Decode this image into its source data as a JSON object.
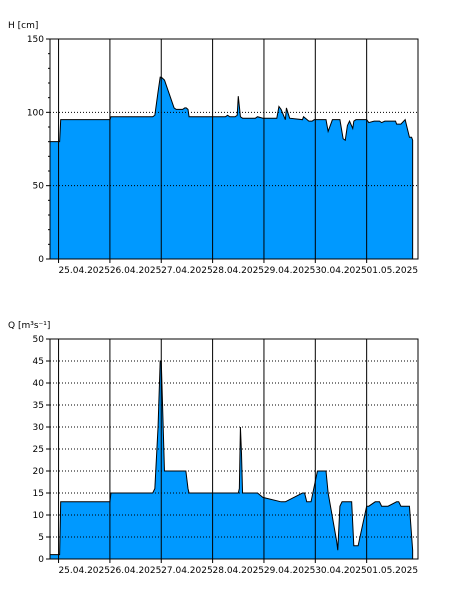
{
  "colors": {
    "fill": "#0099ff",
    "stroke": "#000000",
    "grid": "#000000",
    "background": "#ffffff"
  },
  "chart_data": [
    {
      "type": "area",
      "ylabel": "H [cm]",
      "ylim": [
        0,
        150
      ],
      "yticks": [
        0,
        50,
        100,
        150
      ],
      "grid": "dotted horizontal at 50 and 100, solid vertical at each day",
      "xlim": [
        "2025-04-24T20:00",
        "2025-05-02T00:00"
      ],
      "xticks": [
        "25.04.2025",
        "26.04.2025",
        "27.04.2025",
        "28.04.2025",
        "29.04.2025",
        "30.04.2025",
        "01.05.2025"
      ],
      "x": [
        "2025-04-24T20:00",
        "2025-04-24T23:00",
        "2025-04-25T00:30",
        "2025-04-25T01:00",
        "2025-04-26T00:00",
        "2025-04-26T00:30",
        "2025-04-26T05:00",
        "2025-04-26T20:00",
        "2025-04-26T21:00",
        "2025-04-26T22:30",
        "2025-04-26T23:30",
        "2025-04-27T00:00",
        "2025-04-27T01:30",
        "2025-04-27T06:00",
        "2025-04-27T07:00",
        "2025-04-27T08:00",
        "2025-04-27T10:00",
        "2025-04-27T11:00",
        "2025-04-27T11:40",
        "2025-04-27T12:30",
        "2025-04-27T13:00",
        "2025-04-28T06:00",
        "2025-04-28T07:00",
        "2025-04-28T08:00",
        "2025-04-28T10:30",
        "2025-04-28T11:30",
        "2025-04-28T12:00",
        "2025-04-28T13:00",
        "2025-04-28T14:00",
        "2025-04-28T20:00",
        "2025-04-28T21:00",
        "2025-04-28T23:30",
        "2025-04-29T06:00",
        "2025-04-29T07:00",
        "2025-04-29T08:00",
        "2025-04-29T10:00",
        "2025-04-29T10:30",
        "2025-04-29T12:00",
        "2025-04-29T18:00",
        "2025-04-29T18:30",
        "2025-04-29T21:00",
        "2025-04-29T22:30",
        "2025-04-29T23:30",
        "2025-04-30T00:30",
        "2025-04-30T05:00",
        "2025-04-30T06:00",
        "2025-04-30T08:00",
        "2025-04-30T10:30",
        "2025-04-30T11:30",
        "2025-04-30T13:00",
        "2025-04-30T14:00",
        "2025-04-30T15:00",
        "2025-04-30T16:00",
        "2025-04-30T17:30",
        "2025-04-30T18:00",
        "2025-04-30T19:00",
        "2025-05-01T00:00",
        "2025-05-01T01:00",
        "2025-05-01T03:30",
        "2025-05-01T04:30",
        "2025-05-01T06:00",
        "2025-05-01T07:00",
        "2025-05-01T08:30",
        "2025-05-01T09:00",
        "2025-05-01T10:00",
        "2025-05-01T13:30",
        "2025-05-01T14:00",
        "2025-05-01T16:00",
        "2025-05-01T18:00",
        "2025-05-01T20:00",
        "2025-05-01T21:00",
        "2025-05-01T21:30"
      ],
      "y": [
        80,
        80,
        80,
        95,
        95,
        97,
        97,
        97,
        98,
        114,
        124,
        124,
        122,
        103,
        102,
        102,
        102,
        103,
        103,
        102,
        97,
        97,
        98,
        97,
        97,
        98,
        111,
        97,
        96,
        96,
        97,
        96,
        96,
        104,
        102,
        95,
        103,
        96,
        95,
        97,
        94,
        94,
        95,
        95,
        95,
        87,
        95,
        95,
        95,
        82,
        81,
        91,
        94,
        89,
        94,
        95,
        95,
        93,
        94,
        94,
        94,
        93,
        94,
        94,
        94,
        94,
        92,
        92,
        95,
        83,
        83,
        81
      ]
    },
    {
      "type": "area",
      "ylabel": "Q [m³s⁻¹]",
      "ylim": [
        0,
        50
      ],
      "yticks": [
        0,
        5,
        10,
        15,
        20,
        25,
        30,
        35,
        40,
        45,
        50
      ],
      "grid": "dotted horizontal at each 5, solid vertical at each day",
      "xlim": [
        "2025-04-24T20:00",
        "2025-05-02T00:00"
      ],
      "xticks": [
        "25.04.2025",
        "26.04.2025",
        "27.04.2025",
        "28.04.2025",
        "29.04.2025",
        "30.04.2025",
        "01.05.2025"
      ],
      "x": [
        "2025-04-24T20:00",
        "2025-04-25T00:00",
        "2025-04-25T00:30",
        "2025-04-25T01:00",
        "2025-04-26T00:00",
        "2025-04-26T00:30",
        "2025-04-26T05:00",
        "2025-04-26T20:00",
        "2025-04-26T21:00",
        "2025-04-26T22:30",
        "2025-04-26T23:30",
        "2025-04-27T00:00",
        "2025-04-27T01:30",
        "2025-04-27T08:00",
        "2025-04-27T08:30",
        "2025-04-27T10:00",
        "2025-04-27T11:30",
        "2025-04-27T12:00",
        "2025-04-27T12:30",
        "2025-04-27T13:00",
        "2025-04-27T13:30",
        "2025-04-28T06:00",
        "2025-04-28T07:00",
        "2025-04-28T12:00",
        "2025-04-28T12:30",
        "2025-04-28T13:00",
        "2025-04-28T13:30",
        "2025-04-28T14:00",
        "2025-04-28T20:00",
        "2025-04-28T21:00",
        "2025-04-28T23:30",
        "2025-04-29T08:00",
        "2025-04-29T10:00",
        "2025-04-29T18:00",
        "2025-04-29T19:00",
        "2025-04-29T20:00",
        "2025-04-29T21:00",
        "2025-04-29T21:30",
        "2025-04-29T22:00",
        "2025-04-30T01:00",
        "2025-04-30T05:00",
        "2025-04-30T06:00",
        "2025-04-30T10:00",
        "2025-04-30T10:30",
        "2025-04-30T11:30",
        "2025-04-30T12:30",
        "2025-04-30T13:00",
        "2025-04-30T14:00",
        "2025-04-30T14:30",
        "2025-04-30T15:30",
        "2025-04-30T17:00",
        "2025-04-30T18:00",
        "2025-04-30T20:00",
        "2025-05-01T00:00",
        "2025-05-01T01:00",
        "2025-05-01T04:00",
        "2025-05-01T06:00",
        "2025-05-01T07:00",
        "2025-05-01T09:00",
        "2025-05-01T10:00",
        "2025-05-01T14:00",
        "2025-05-01T15:00",
        "2025-05-01T16:00",
        "2025-05-01T17:00",
        "2025-05-01T20:00",
        "2025-05-01T21:30"
      ],
      "y": [
        1,
        1,
        1,
        13,
        13,
        15,
        15,
        15,
        16,
        30,
        45,
        45,
        20,
        20,
        20,
        20,
        20,
        18,
        16,
        15,
        15,
        15,
        15,
        15,
        16,
        30,
        24,
        15,
        15,
        15,
        14,
        13,
        13,
        15,
        15,
        13,
        13,
        13,
        13,
        20,
        20,
        15,
        4,
        2,
        12,
        13,
        13,
        13,
        13,
        13,
        13,
        3,
        3,
        12,
        12,
        13,
        13,
        12,
        12,
        12,
        13,
        13,
        12,
        12,
        12,
        2
      ]
    }
  ]
}
